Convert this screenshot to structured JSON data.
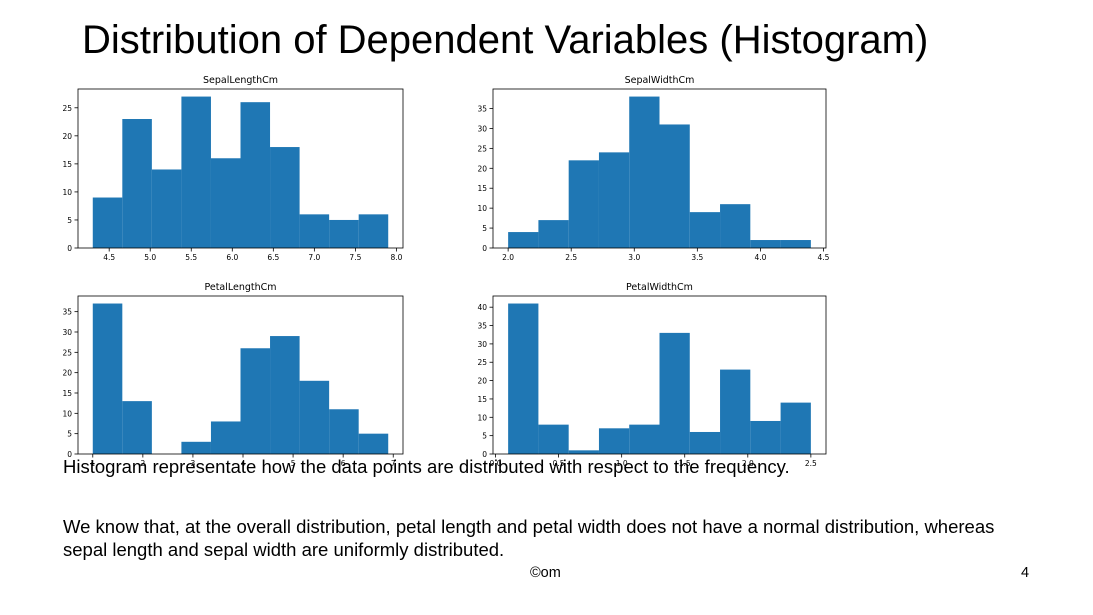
{
  "slide": {
    "title": "Distribution of Dependent Variables (Histogram)",
    "paragraph_1": "Histogram representate how the data points are distributed with respect to the frequency.",
    "paragraph_2": "We know that, at the overall distribution, petal length and petal width does not have a normal distribution, whereas sepal length and sepal width are uniformly distributed.",
    "footer_mark": "©om",
    "page_number": "4"
  },
  "colors": {
    "bar": "#1f77b4",
    "axis": "#000000",
    "text": "#000000"
  },
  "chart_data": [
    {
      "type": "bar",
      "title": "SepalLengthCm",
      "bin_edges": [
        4.3,
        4.66,
        5.02,
        5.38,
        5.74,
        6.1,
        6.46,
        6.82,
        7.18,
        7.54,
        7.9
      ],
      "values": [
        9,
        23,
        14,
        27,
        16,
        26,
        18,
        6,
        5,
        6
      ],
      "xlim": [
        4.12,
        8.08
      ],
      "ylim": [
        0,
        28.35
      ],
      "xticks": [
        "4.5",
        "5.0",
        "5.5",
        "6.0",
        "6.5",
        "7.0",
        "7.5",
        "8.0"
      ],
      "xtick_values": [
        4.5,
        5.0,
        5.5,
        6.0,
        6.5,
        7.0,
        7.5,
        8.0
      ],
      "yticks": [
        "0",
        "5",
        "10",
        "15",
        "20",
        "25"
      ],
      "ytick_values": [
        0,
        5,
        10,
        15,
        20,
        25
      ]
    },
    {
      "type": "bar",
      "title": "SepalWidthCm",
      "bin_edges": [
        2.0,
        2.24,
        2.48,
        2.72,
        2.96,
        3.2,
        3.44,
        3.68,
        3.92,
        4.16,
        4.4
      ],
      "values": [
        4,
        7,
        22,
        24,
        38,
        31,
        9,
        11,
        2,
        2
      ],
      "xlim": [
        1.88,
        4.52
      ],
      "ylim": [
        0,
        39.9
      ],
      "xticks": [
        "2.0",
        "2.5",
        "3.0",
        "3.5",
        "4.0",
        "4.5"
      ],
      "xtick_values": [
        2.0,
        2.5,
        3.0,
        3.5,
        4.0,
        4.5
      ],
      "yticks": [
        "0",
        "5",
        "10",
        "15",
        "20",
        "25",
        "30",
        "35"
      ],
      "ytick_values": [
        0,
        5,
        10,
        15,
        20,
        25,
        30,
        35
      ]
    },
    {
      "type": "bar",
      "title": "PetalLengthCm",
      "bin_edges": [
        1.0,
        1.59,
        2.18,
        2.77,
        3.36,
        3.95,
        4.54,
        5.13,
        5.72,
        6.31,
        6.9
      ],
      "values": [
        37,
        13,
        0,
        3,
        8,
        26,
        29,
        18,
        11,
        5
      ],
      "xlim": [
        0.705,
        7.195
      ],
      "ylim": [
        0,
        38.85
      ],
      "xticks": [
        "1",
        "2",
        "3",
        "4",
        "5",
        "6",
        "7"
      ],
      "xtick_values": [
        1,
        2,
        3,
        4,
        5,
        6,
        7
      ],
      "yticks": [
        "0",
        "5",
        "10",
        "15",
        "20",
        "25",
        "30",
        "35"
      ],
      "ytick_values": [
        0,
        5,
        10,
        15,
        20,
        25,
        30,
        35
      ]
    },
    {
      "type": "bar",
      "title": "PetalWidthCm",
      "bin_edges": [
        0.1,
        0.34,
        0.58,
        0.82,
        1.06,
        1.3,
        1.54,
        1.78,
        2.02,
        2.26,
        2.5
      ],
      "values": [
        41,
        8,
        1,
        7,
        8,
        33,
        6,
        23,
        9,
        14
      ],
      "xlim": [
        -0.02,
        2.62
      ],
      "ylim": [
        0,
        43.05
      ],
      "xticks": [
        "0.0",
        "0.5",
        "1.0",
        "1.5",
        "2.0",
        "2.5"
      ],
      "xtick_values": [
        0.0,
        0.5,
        1.0,
        1.5,
        2.0,
        2.5
      ],
      "yticks": [
        "0",
        "5",
        "10",
        "15",
        "20",
        "25",
        "30",
        "35",
        "40"
      ],
      "ytick_values": [
        0,
        5,
        10,
        15,
        20,
        25,
        30,
        35,
        40
      ]
    }
  ]
}
